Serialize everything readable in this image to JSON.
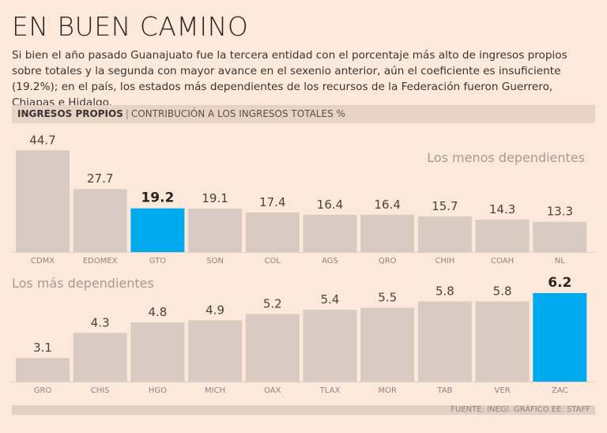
{
  "title": "EN BUEN CAMINO",
  "intro": "Si bien el año pasado Guanajuato fue la tercera entidad con el porcentaje más alto de ingresos propios sobre totales y la segunda con mayor avance en el sexenio anterior, aún el coeficiente es insuficiente (19.2%); en el país, los estados más dependientes de los recursos de la Federación fueron Guerrero, Chiapas e Hidalgo.",
  "header": {
    "bold": "INGRESOS PROPIOS",
    "sep": "|",
    "sub": "CONTRIBUCIÓN A LOS INGRESOS TOTALES %"
  },
  "footer": "FUENTE: INEGI. GRÁFICO EE: STAFF",
  "colors": {
    "bar": "#d9cbc1",
    "highlight": "#00aaee"
  },
  "chart_data": [
    {
      "type": "bar",
      "title": "Los menos dependientes",
      "annotation": "Los menos dependientes",
      "categories": [
        "CDMX",
        "EDOMEX",
        "GTO",
        "SON",
        "COL",
        "AGS",
        "QRO",
        "CHIH",
        "COAH",
        "NL"
      ],
      "values": [
        44.7,
        27.7,
        19.2,
        19.1,
        17.4,
        16.4,
        16.4,
        15.7,
        14.3,
        13.3
      ],
      "value_labels": [
        "44.7",
        "27.7",
        "19.2",
        "19.1",
        "17.4",
        "16.4",
        "16.4",
        "15.7",
        "14.3",
        "13.3"
      ],
      "highlight": "GTO",
      "ylabel": "%",
      "ylim": [
        0,
        45
      ]
    },
    {
      "type": "bar",
      "title": "Los más dependientes",
      "annotation": "Los más dependientes",
      "categories": [
        "GRO",
        "CHIS",
        "HGO",
        "MICH",
        "OAX",
        "TLAX",
        "MOR",
        "TAB",
        "VER",
        "ZAC"
      ],
      "values": [
        3.1,
        4.3,
        4.8,
        4.9,
        5.2,
        5.4,
        5.5,
        5.8,
        5.8,
        6.2
      ],
      "value_labels": [
        "3.1",
        "4.3",
        "4.8",
        "4.9",
        "5.2",
        "5.4",
        "5.5",
        "5.8",
        "5.8",
        "6.2"
      ],
      "highlight": "ZAC",
      "ylabel": "%",
      "ylim": [
        2,
        6.2
      ]
    }
  ]
}
